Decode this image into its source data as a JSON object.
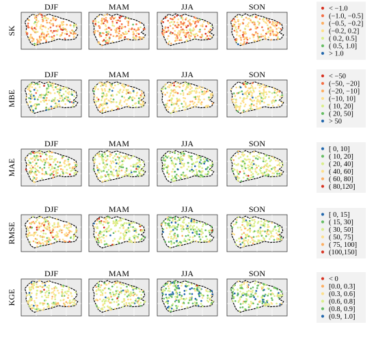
{
  "seasons": [
    "DJF",
    "MAM",
    "JJA",
    "SON"
  ],
  "rows": [
    {
      "id": "sk",
      "label": "SK",
      "legend": [
        "< −1.0",
        "(−1.0, −0.5]",
        "(−0.5, −0.2]",
        "(−0.2,  0.2]",
        "( 0.2,  0.5]",
        "( 0.5,  1.0]",
        "> 1.0"
      ],
      "colors": [
        "#d7301f",
        "#f46d43",
        "#fdae61",
        "#fee08b",
        "#d9ef8b",
        "#66bd63",
        "#2166ac"
      ],
      "weights": [
        [
          0.06,
          0.18,
          0.26,
          0.4,
          0.07,
          0.02,
          0.01
        ],
        [
          0.08,
          0.24,
          0.28,
          0.34,
          0.04,
          0.01,
          0.01
        ],
        [
          0.12,
          0.26,
          0.22,
          0.28,
          0.08,
          0.03,
          0.01
        ],
        [
          0.04,
          0.14,
          0.26,
          0.46,
          0.08,
          0.01,
          0.01
        ]
      ]
    },
    {
      "id": "mbe",
      "label": "MBE",
      "legend": [
        "< −50",
        "(−50, −20]",
        "(−20, −10]",
        "(−10,  10]",
        "( 10,  20]",
        "( 20,  50]",
        "> 50"
      ],
      "colors": [
        "#d7301f",
        "#f46d43",
        "#fdae61",
        "#fee08b",
        "#d9ef8b",
        "#66bd63",
        "#2166ac"
      ],
      "weights": [
        [
          0.01,
          0.02,
          0.06,
          0.4,
          0.25,
          0.2,
          0.06
        ],
        [
          0.01,
          0.01,
          0.04,
          0.55,
          0.24,
          0.12,
          0.03
        ],
        [
          0.01,
          0.02,
          0.05,
          0.72,
          0.14,
          0.05,
          0.01
        ],
        [
          0.01,
          0.01,
          0.04,
          0.58,
          0.22,
          0.12,
          0.02
        ]
      ]
    },
    {
      "id": "mae",
      "label": "MAE",
      "legend": [
        "[  0,  10]",
        "( 10,  20]",
        "( 20,  40]",
        "( 40,  60]",
        "( 60,  80]",
        "( 80,120]"
      ],
      "colors": [
        "#2166ac",
        "#66bd63",
        "#d9ef8b",
        "#fee08b",
        "#fdae61",
        "#d7301f"
      ],
      "weights": [
        [
          0.01,
          0.08,
          0.36,
          0.36,
          0.14,
          0.05
        ],
        [
          0.02,
          0.22,
          0.5,
          0.2,
          0.04,
          0.02
        ],
        [
          0.04,
          0.4,
          0.42,
          0.1,
          0.03,
          0.01
        ],
        [
          0.02,
          0.18,
          0.52,
          0.22,
          0.04,
          0.02
        ]
      ]
    },
    {
      "id": "rmse",
      "label": "RMSE",
      "legend": [
        "[  0,  15]",
        "( 15,  30]",
        "( 30,  50]",
        "( 50,  75]",
        "( 75, 100]",
        "(100,150]"
      ],
      "colors": [
        "#2166ac",
        "#66bd63",
        "#d9ef8b",
        "#fee08b",
        "#fdae61",
        "#d7301f"
      ],
      "weights": [
        [
          0.01,
          0.06,
          0.34,
          0.38,
          0.16,
          0.05
        ],
        [
          0.02,
          0.2,
          0.5,
          0.22,
          0.04,
          0.02
        ],
        [
          0.05,
          0.44,
          0.38,
          0.1,
          0.02,
          0.01
        ],
        [
          0.02,
          0.16,
          0.52,
          0.24,
          0.04,
          0.02
        ]
      ]
    },
    {
      "id": "kge",
      "label": "KGE",
      "legend": [
        "< 0",
        "[0.0, 0.3]",
        "(0.3, 0.6]",
        "(0.6, 0.8]",
        "(0.8, 0.9]",
        "(0.9, 1.0]"
      ],
      "colors": [
        "#d7301f",
        "#fdae61",
        "#fee08b",
        "#d9ef8b",
        "#66bd63",
        "#2166ac"
      ],
      "weights": [
        [
          0.02,
          0.12,
          0.42,
          0.34,
          0.08,
          0.02
        ],
        [
          0.01,
          0.06,
          0.28,
          0.42,
          0.2,
          0.03
        ],
        [
          0.01,
          0.02,
          0.1,
          0.3,
          0.35,
          0.22
        ],
        [
          0.01,
          0.03,
          0.14,
          0.4,
          0.32,
          0.1
        ]
      ]
    }
  ],
  "colors": {
    "panel_background": "#ebebeb",
    "grid": "#ffffff",
    "outline": "#000000"
  }
}
